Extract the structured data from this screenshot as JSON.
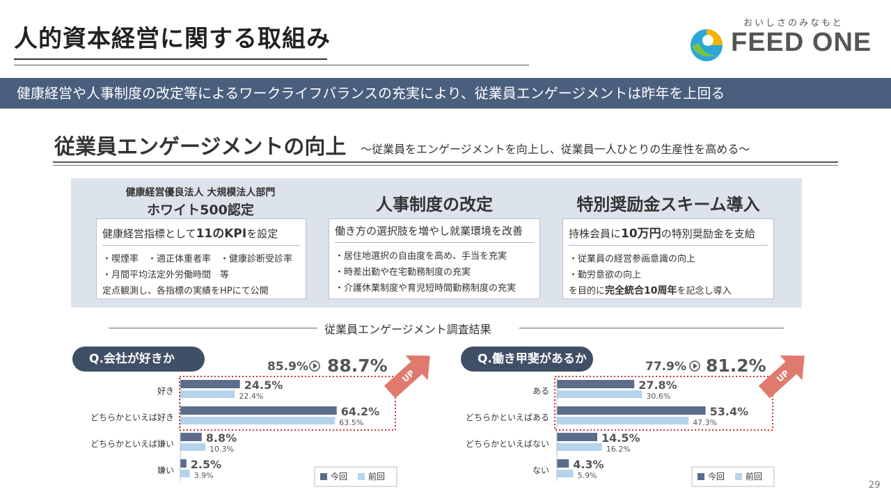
{
  "header": {
    "title": "人的資本経営に関する取組み",
    "logo_tagline": "おいしさのみなもと",
    "logo_text": "FEED ONE"
  },
  "banner": "健康経営や人事制度の改定等によるワークライフバランスの充実により、従業員エンゲージメントは昨年を上回る",
  "section": {
    "title": "従業員エンゲージメントの向上",
    "subtitle": "～従業員をエンゲージメントを向上し、従業員一人ひとりの生産性を高める～"
  },
  "columns": [
    {
      "title_small": "健康経営優良法人 大規模法人部門",
      "title": "ホワイト500認定",
      "lead_pre": "健康経営指標として",
      "lead_bold": "11のKPI",
      "lead_post": "を設定",
      "lines": [
        "・喫煙率　・適正体重者率　・健康診断受診率",
        "・月間平均法定外労働時間　等",
        "定点観測し、各指標の実績をHPにて公開"
      ]
    },
    {
      "title": "人事制度の改定",
      "lead": "働き方の選択肢を増やし就業環境を改善",
      "lines": [
        "・居住地選択の自由度を高め、手当を充実",
        "・時差出勤や在宅勤務制度の充実",
        "・介護休業制度や育児短時間勤務制度の充実"
      ]
    },
    {
      "title": "特別奨励金スキーム導入",
      "lead_pre": "持株会員に",
      "lead_bold": "10万円",
      "lead_post": "の特別奨励金を支給",
      "lines": [
        "・従業員の経営参画意識の向上",
        "・勤労意欲の向上"
      ],
      "closing_pre": "を目的に",
      "closing_bold": "完全統合10周年",
      "closing_post": "を記念し導入"
    }
  ],
  "survey_title": "従業員エンゲージメント調査結果",
  "legend": {
    "current": "今回",
    "previous": "前回"
  },
  "up_label": "UP",
  "page_number": "29",
  "colors": {
    "current": "#5b6d8a",
    "previous": "#b6d3ec",
    "accent": "#e07a6e",
    "highlight": "#cc3333",
    "banner": "#4a5f7e"
  },
  "chart_data": [
    {
      "type": "bar",
      "title": "Q.会社が好きか",
      "categories": [
        "好き",
        "どちらかといえば好き",
        "どちらかといえば嫌い",
        "嫌い"
      ],
      "series": [
        {
          "name": "今回",
          "values": [
            24.5,
            64.2,
            8.8,
            2.5
          ]
        },
        {
          "name": "前回",
          "values": [
            22.4,
            63.5,
            10.3,
            3.9
          ]
        }
      ],
      "summary_previous": "85.9%",
      "summary_current": "88.7%",
      "highlight_categories": [
        "好き",
        "どちらかといえば好き"
      ],
      "xlim": [
        0,
        100
      ]
    },
    {
      "type": "bar",
      "title": "Q.働き甲斐があるか",
      "categories": [
        "ある",
        "どちらかといえばある",
        "どちらかといえばない",
        "ない"
      ],
      "series": [
        {
          "name": "今回",
          "values": [
            27.8,
            53.4,
            14.5,
            4.3
          ]
        },
        {
          "name": "前回",
          "values": [
            30.6,
            47.3,
            16.2,
            5.9
          ]
        }
      ],
      "summary_previous": "77.9%",
      "summary_current": "81.2%",
      "highlight_categories": [
        "ある",
        "どちらかといえばある"
      ],
      "xlim": [
        0,
        100
      ]
    }
  ]
}
